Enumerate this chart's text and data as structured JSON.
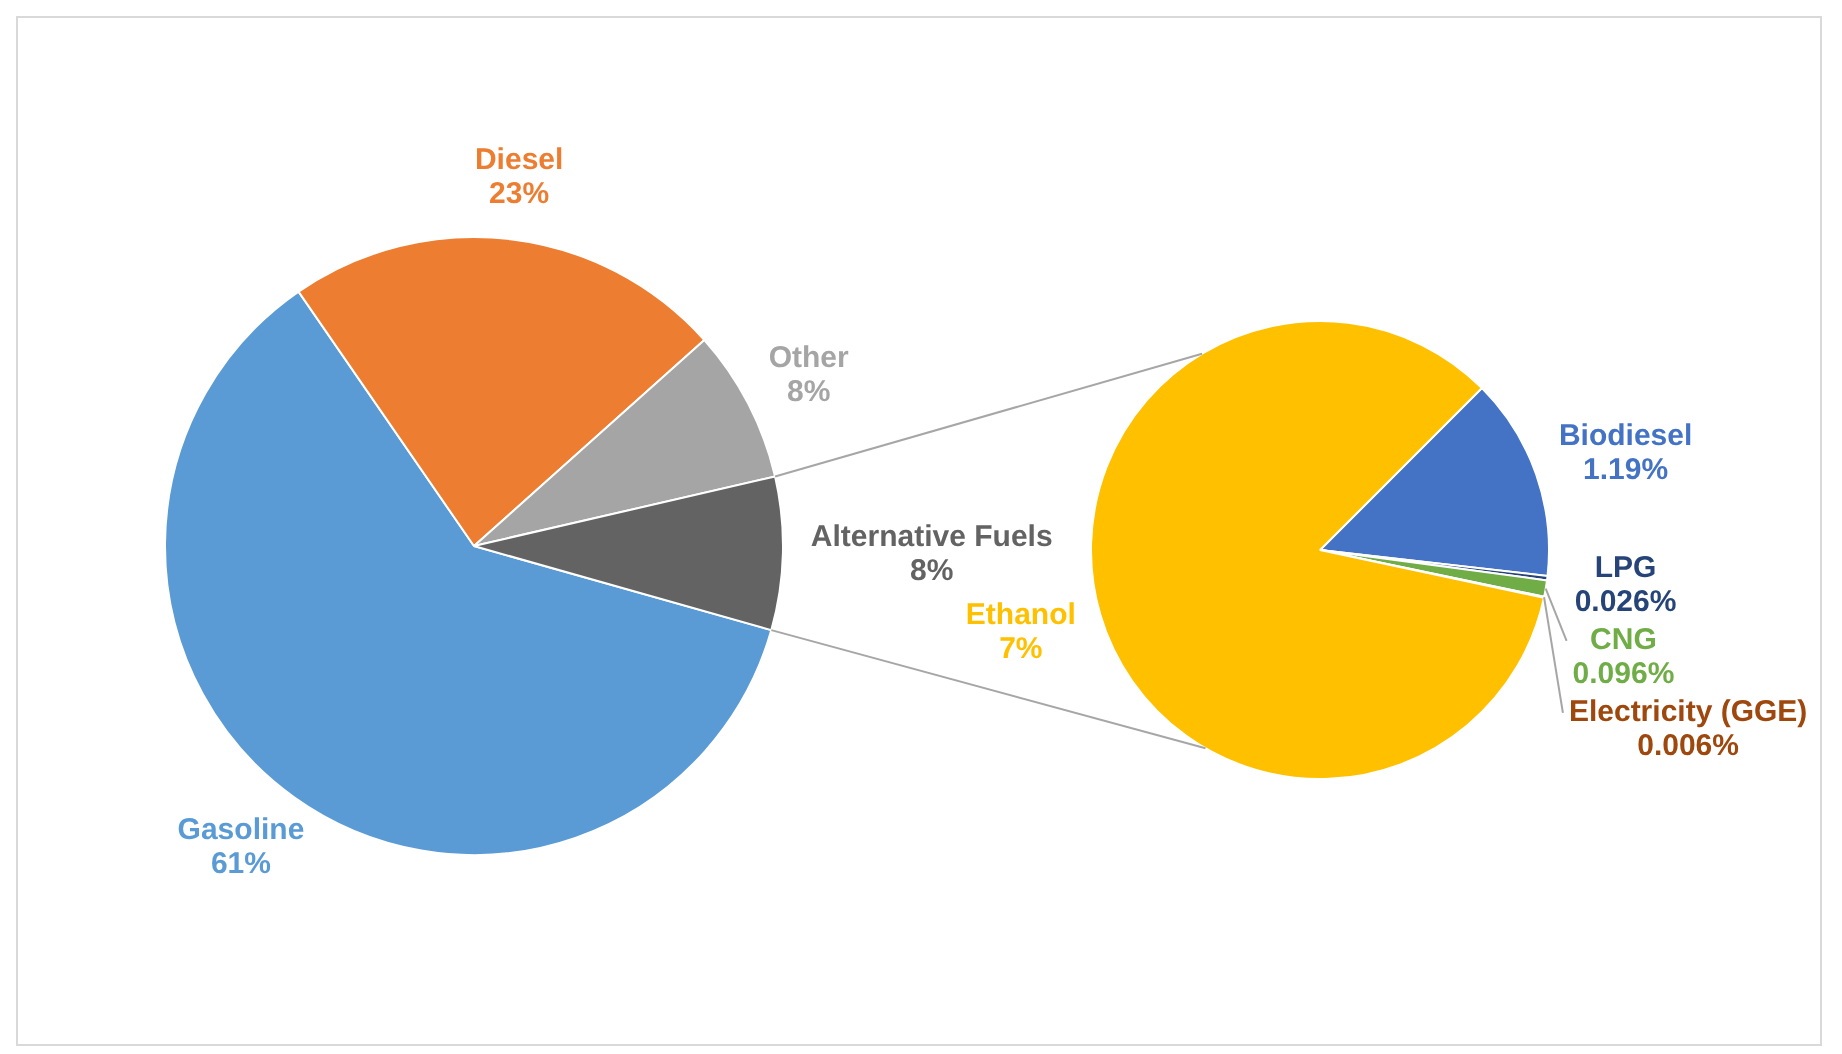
{
  "chart_data": [
    {
      "type": "pie",
      "categories": [
        "Gasoline",
        "Diesel",
        "Other",
        "Alternative Fuels"
      ],
      "values": [
        61,
        23,
        8,
        8
      ],
      "colors": [
        "#5b9bd5",
        "#ed7d31",
        "#a5a5a5",
        "#636363"
      ],
      "value_labels": [
        "61%",
        "23%",
        "8%",
        "8%"
      ]
    },
    {
      "type": "pie",
      "categories": [
        "Biodiesel",
        "LPG",
        "CNG",
        "Electricity (GGE)",
        "Ethanol"
      ],
      "values": [
        1.19,
        0.026,
        0.096,
        0.006,
        7
      ],
      "colors": [
        "#4472c4",
        "#264478",
        "#70ad47",
        "#9e480e",
        "#ffc000"
      ],
      "value_labels": [
        "1.19%",
        "0.026%",
        "0.096%",
        "0.006%",
        "7%"
      ]
    }
  ]
}
